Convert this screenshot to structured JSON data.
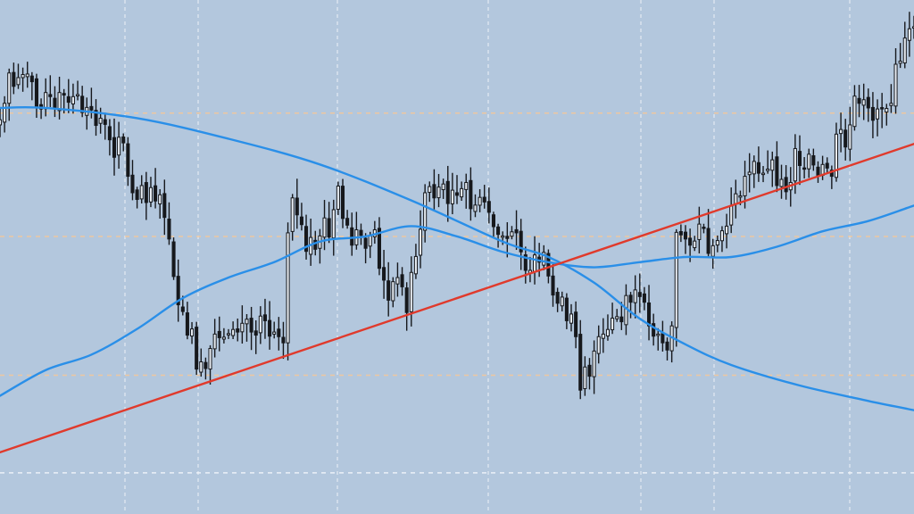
{
  "chart_data": {
    "type": "candlestick",
    "title": "",
    "xlabel": "",
    "ylabel": "",
    "ylim": [
      0,
      100
    ],
    "grid": true,
    "legend": "none",
    "colors": {
      "background": "#b3c7dd",
      "candle": "#16181c",
      "trendline": "#e03a2c",
      "moving_average": "#2a8fe8",
      "grid_vertical": "#f2f5fa",
      "grid_horizontal": "#f3c79b"
    },
    "horizontal_grid_levels": [
      78,
      54,
      27,
      8
    ],
    "trendline": {
      "start": [
        0,
        12
      ],
      "end": [
        250,
        87
      ]
    },
    "moving_averages": [
      {
        "x": [
          0,
          10,
          30,
          50,
          70,
          90,
          110,
          120,
          130,
          140,
          150,
          160,
          175,
          190,
          210,
          230,
          250
        ],
        "y": [
          79,
          79,
          77,
          73,
          68,
          61,
          53,
          50,
          45,
          38,
          33,
          29,
          25,
          22,
          18,
          11,
          6
        ]
      },
      {
        "x": [
          0,
          10,
          20,
          30,
          40,
          50,
          60,
          70,
          80,
          90,
          100,
          110,
          120,
          130,
          140,
          150,
          160,
          170,
          180,
          190,
          200,
          210,
          220,
          230,
          240,
          250
        ],
        "y": [
          23,
          28,
          31,
          36,
          42,
          46,
          49,
          53,
          54,
          56,
          54,
          51,
          49,
          48,
          49,
          50,
          50,
          52,
          55,
          57,
          60,
          63,
          65,
          67,
          71,
          69
        ]
      }
    ],
    "candles": {
      "x_start": 0,
      "x_step": 1,
      "close": [
        76.7,
        79.9,
        85.8,
        83.2,
        84.9,
        85.5,
        85.6,
        84.1,
        79.1,
        78.8,
        82.0,
        81.2,
        78.9,
        82.0,
        81.5,
        80.1,
        81.2,
        81.6,
        78.1,
        79.1,
        78.6,
        75.6,
        77.0,
        75.8,
        72.8,
        69.4,
        73.3,
        72.2,
        65.7,
        62.5,
        61.2,
        63.9,
        60.6,
        63.5,
        60.9,
        62.1,
        57.7,
        53.5,
        46.2,
        40.7,
        39.4,
        34.8,
        36.0,
        28.2,
        29.6,
        28.3,
        32.2,
        35.0,
        34.3,
        34.4,
        35.1,
        35.9,
        35.4,
        37.1,
        37.9,
        35.4,
        34.8,
        38.5,
        37.6,
        34.6,
        35.4,
        34.5,
        33.3,
        54.7,
        61.5,
        58.2,
        56.3,
        51.1,
        53.8,
        51.5,
        54.1,
        57.6,
        53.9,
        59.2,
        63.8,
        57.5,
        56.2,
        52.3,
        55.3,
        54.2,
        51.7,
        54.2,
        55.3,
        47.8,
        45.5,
        41.6,
        45.2,
        46.0,
        44.2,
        39.2,
        47.0,
        50.1,
        55.4,
        62.5,
        63.7,
        61.5,
        63.6,
        64.2,
        60.4,
        63.0,
        62.0,
        63.3,
        64.5,
        59.4,
        60.1,
        61.6,
        60.7,
        58.7,
        55.9,
        54.4,
        54.1,
        53.6,
        54.9,
        54.7,
        51.0,
        47.4,
        47.4,
        50.4,
        49.0,
        50.9,
        46.3,
        42.6,
        41.0,
        42.2,
        37.6,
        38.9,
        34.5,
        24.1,
        28.6,
        26.8,
        31.7,
        34.5,
        35.0,
        35.9,
        38.1,
        38.4,
        37.4,
        42.5,
        41.2,
        43.6,
        42.3,
        41.2,
        36.6,
        34.6,
        35.0,
        33.3,
        31.9,
        36.6,
        54.8,
        54.3,
        53.5,
        52.3,
        53.1,
        56.4,
        55.8,
        50.7,
        52.2,
        53.2,
        55.1,
        56.0,
        59.9,
        62.3,
        61.9,
        65.7,
        66.5,
        68.6,
        66.3,
        66.3,
        67.1,
        68.9,
        63.9,
        65.1,
        62.7,
        64.5,
        71.1,
        67.8,
        67.3,
        70.0,
        67.9,
        65.9,
        68.0,
        67.3,
        65.7,
        73.9,
        74.8,
        71.4,
        75.7,
        81.3,
        79.9,
        80.6,
        79.0,
        76.6,
        78.8,
        78.8,
        78.9,
        79.9,
        87.5,
        88.1,
        92.6,
        94.4,
        94.8
      ],
      "note_visible": ""
    }
  }
}
